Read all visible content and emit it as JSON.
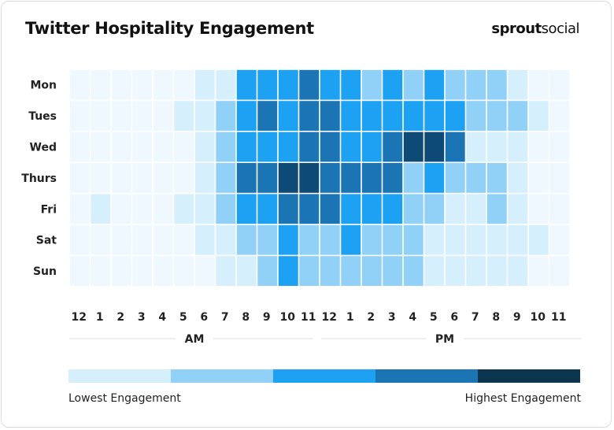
{
  "title": "Twitter Hospitality Engagement",
  "brand": {
    "bold": "sprout",
    "regular": "social"
  },
  "chart_data": {
    "type": "heatmap",
    "rows": [
      "Mon",
      "Tues",
      "Wed",
      "Thurs",
      "Fri",
      "Sat",
      "Sun"
    ],
    "columns": [
      "12",
      "1",
      "2",
      "3",
      "4",
      "5",
      "6",
      "7",
      "8",
      "9",
      "10",
      "11",
      "12",
      "1",
      "2",
      "3",
      "4",
      "5",
      "6",
      "7",
      "8",
      "9",
      "10",
      "11"
    ],
    "column_groups": [
      {
        "label": "AM",
        "span": 12
      },
      {
        "label": "PM",
        "span": 12
      }
    ],
    "levels": [
      [
        0,
        0,
        0,
        0,
        0,
        0,
        1,
        1,
        3,
        3,
        3,
        4,
        3,
        3,
        2,
        3,
        2,
        3,
        2,
        2,
        2,
        1,
        0,
        0
      ],
      [
        0,
        0,
        0,
        0,
        0,
        1,
        1,
        2,
        3,
        4,
        3,
        4,
        4,
        3,
        3,
        3,
        3,
        3,
        3,
        2,
        2,
        2,
        1,
        0
      ],
      [
        0,
        0,
        0,
        0,
        0,
        0,
        1,
        2,
        3,
        3,
        3,
        4,
        4,
        3,
        3,
        4,
        5,
        5,
        4,
        1,
        1,
        1,
        0,
        0
      ],
      [
        0,
        0,
        0,
        0,
        0,
        0,
        1,
        2,
        4,
        4,
        5,
        5,
        4,
        4,
        4,
        4,
        2,
        3,
        2,
        2,
        2,
        1,
        0,
        0
      ],
      [
        0,
        1,
        0,
        0,
        0,
        1,
        1,
        2,
        3,
        3,
        4,
        4,
        4,
        3,
        3,
        3,
        2,
        2,
        1,
        1,
        2,
        1,
        0,
        0
      ],
      [
        0,
        0,
        0,
        0,
        0,
        0,
        1,
        1,
        2,
        2,
        3,
        2,
        2,
        3,
        2,
        2,
        2,
        1,
        1,
        1,
        1,
        1,
        1,
        0
      ],
      [
        0,
        0,
        0,
        0,
        0,
        0,
        0,
        1,
        1,
        2,
        3,
        2,
        2,
        2,
        2,
        2,
        2,
        1,
        1,
        1,
        1,
        1,
        0,
        0
      ]
    ],
    "level_colors": [
      "#eef8fe",
      "#d6effc",
      "#91d0f7",
      "#1da1f2",
      "#1b75b4",
      "#0d4a75"
    ],
    "legend": {
      "colors": [
        "#d6effc",
        "#91d0f7",
        "#1da1f2",
        "#1b75b4",
        "#0c3550"
      ],
      "low_label": "Lowest Engagement",
      "high_label": "Highest Engagement"
    }
  }
}
